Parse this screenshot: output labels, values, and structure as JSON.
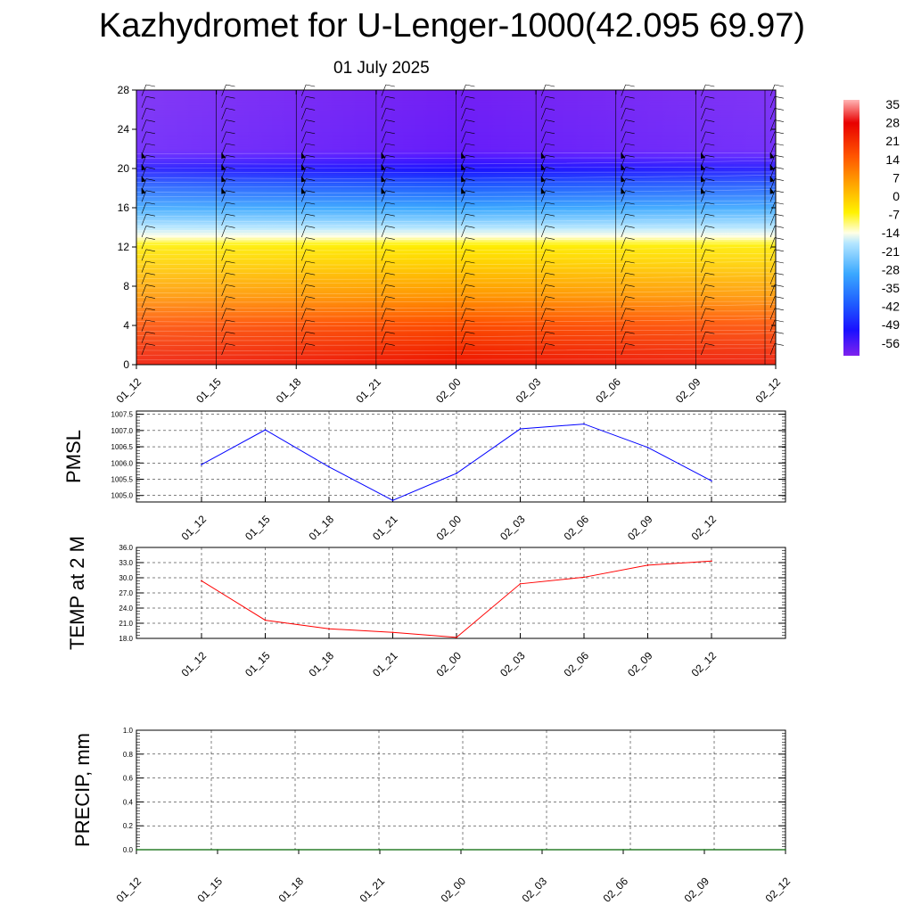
{
  "page": {
    "title": "Kazhydromet for U-Lenger-1000(42.095 69.97)",
    "date": "01 July 2025"
  },
  "chart_data": [
    {
      "type": "heatmap",
      "title": "",
      "xlabel": "",
      "ylabel": "",
      "x_ticks": [
        "01_12",
        "01_15",
        "01_18",
        "01_21",
        "02_00",
        "02_03",
        "02_06",
        "02_09",
        "02_12"
      ],
      "y_ticks": [
        0,
        4,
        8,
        12,
        16,
        20,
        24,
        28
      ],
      "ylim": [
        0,
        28
      ],
      "colorbar_labels": [
        "35",
        "28",
        "21",
        "14",
        "7",
        "0",
        "-7",
        "-14",
        "-21",
        "-28",
        "-35",
        "-42",
        "-49",
        "-56"
      ],
      "colors": {
        "warm_low": "#d40000",
        "orange": "#ff8c00",
        "yellow": "#ffea00",
        "cold_light": "#38b6ff",
        "cold_deep": "#1a1aff",
        "top": "#7f22ee"
      },
      "temperature_profile": [
        {
          "y": 0,
          "t": 28
        },
        {
          "y": 4,
          "t": 22
        },
        {
          "y": 8,
          "t": 12
        },
        {
          "y": 12,
          "t": 0
        },
        {
          "y": 13,
          "t": -7
        },
        {
          "y": 14,
          "t": -14
        },
        {
          "y": 16,
          "t": -28
        },
        {
          "y": 18,
          "t": -40
        },
        {
          "y": 20,
          "t": -52
        },
        {
          "y": 21,
          "t": -56
        },
        {
          "y": 22,
          "t": -60
        },
        {
          "y": 28,
          "t": -62
        }
      ]
    },
    {
      "type": "line",
      "ylabel": "PMSL",
      "xlabel": "",
      "categories": [
        "01_12",
        "01_15",
        "01_18",
        "01_21",
        "02_00",
        "02_03",
        "02_06",
        "02_09",
        "02_12"
      ],
      "values": [
        1005.95,
        1007.02,
        1005.88,
        1004.85,
        1005.68,
        1007.05,
        1007.2,
        1006.48,
        1005.45
      ],
      "ylim": [
        1004.8,
        1007.6
      ],
      "y_ticks": [
        "1005.0",
        "1005.5",
        "1006.0",
        "1006.5",
        "1007.0",
        "1007.5"
      ],
      "color": "#0000ff"
    },
    {
      "type": "line",
      "ylabel": "TEMP at 2 M",
      "xlabel": "",
      "categories": [
        "01_12",
        "01_15",
        "01_18",
        "01_21",
        "02_00",
        "02_03",
        "02_06",
        "02_09",
        "02_12"
      ],
      "values": [
        29.4,
        21.6,
        19.9,
        19.2,
        18.2,
        28.8,
        30.1,
        32.5,
        33.3
      ],
      "ylim": [
        18,
        36
      ],
      "y_ticks": [
        "18.0",
        "21.0",
        "24.0",
        "27.0",
        "30.0",
        "33.0",
        "36.0"
      ],
      "color": "#ff0000"
    },
    {
      "type": "line",
      "ylabel": "PRECIP, mm",
      "xlabel": "",
      "categories": [
        "01_12",
        "01_15",
        "01_18",
        "01_21",
        "02_00",
        "02_03",
        "02_06",
        "02_09",
        "02_12"
      ],
      "values": [
        0,
        0,
        0,
        0,
        0,
        0,
        0,
        0,
        0
      ],
      "ylim": [
        0,
        1
      ],
      "y_ticks": [
        "0.0",
        "0.2",
        "0.4",
        "0.6",
        "0.8",
        "1.0"
      ],
      "color": "#006400"
    }
  ]
}
